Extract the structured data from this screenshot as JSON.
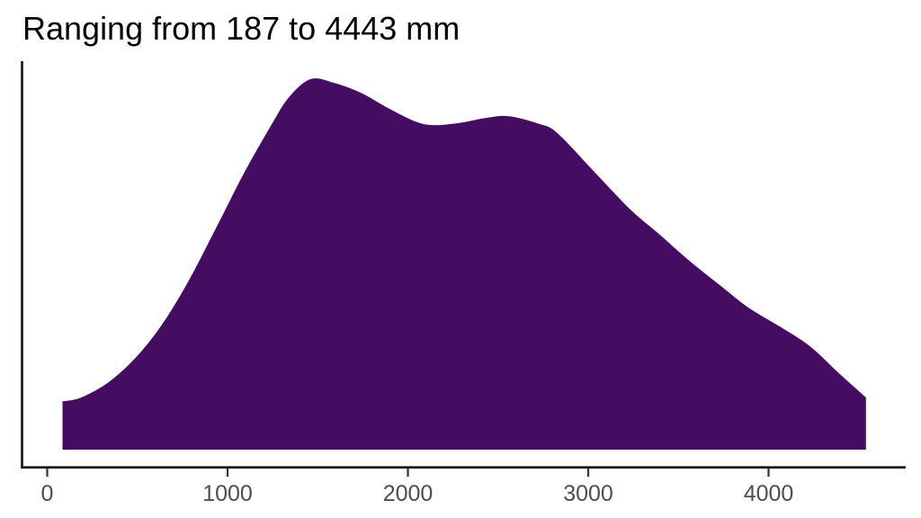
{
  "chart_data": {
    "type": "area",
    "title": "Ranging from 187 to 4443 mm",
    "xlabel": "",
    "ylabel": "",
    "x_unit": "mm",
    "data_min": 187,
    "data_max": 4443,
    "x_ticks": [
      0,
      1000,
      2000,
      3000,
      4000
    ],
    "x_tick_labels": [
      "0",
      "1000",
      "2000",
      "3000",
      "4000"
    ],
    "xlim": [
      -140,
      4760
    ],
    "grid": "off",
    "legend": "none",
    "density_curve_points": [
      [
        85,
        0.13
      ],
      [
        190,
        0.141
      ],
      [
        340,
        0.182
      ],
      [
        490,
        0.248
      ],
      [
        640,
        0.34
      ],
      [
        790,
        0.461
      ],
      [
        940,
        0.602
      ],
      [
        1090,
        0.745
      ],
      [
        1240,
        0.874
      ],
      [
        1340,
        0.951
      ],
      [
        1460,
        1.0
      ],
      [
        1590,
        0.99
      ],
      [
        1740,
        0.963
      ],
      [
        1890,
        0.922
      ],
      [
        2040,
        0.886
      ],
      [
        2140,
        0.876
      ],
      [
        2290,
        0.882
      ],
      [
        2430,
        0.895
      ],
      [
        2560,
        0.9
      ],
      [
        2730,
        0.879
      ],
      [
        2830,
        0.854
      ],
      [
        3030,
        0.752
      ],
      [
        3230,
        0.65
      ],
      [
        3390,
        0.583
      ],
      [
        3560,
        0.51
      ],
      [
        3730,
        0.444
      ],
      [
        3890,
        0.383
      ],
      [
        4060,
        0.333
      ],
      [
        4230,
        0.279
      ],
      [
        4380,
        0.211
      ],
      [
        4540,
        0.141
      ]
    ],
    "density_note": "y values are density relative to maximum (peak near x=1460 mm = 1.0); second local peak near x=2560 mm, local dip near x=2140 mm",
    "colors": {
      "area_fill": "#450d61",
      "axis_line": "#101010",
      "tick_mark": "#333333",
      "tick_label": "#4d4d4d",
      "title_text": "#000000",
      "background": "#ffffff"
    }
  }
}
